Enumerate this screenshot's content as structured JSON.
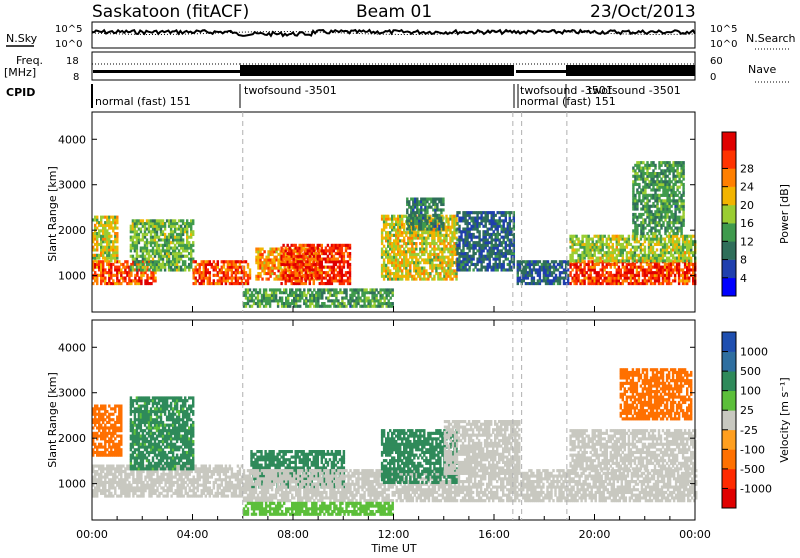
{
  "chart_data": [
    {
      "type": "table",
      "title": "Saskatoon (fitACF)",
      "beam": "Beam 01",
      "date": "23/Oct/2013",
      "panels": [
        "noise",
        "frequency",
        "cpid"
      ],
      "noise": {
        "left_label": "N.Sky",
        "right_label": "N.Search",
        "left_ticks": [
          "10^5",
          "10^0"
        ],
        "right_ticks": [
          "10^5",
          "10^0"
        ]
      },
      "frequency": {
        "left_label_1": "Freq.",
        "left_label_2": "[MHz]",
        "right_label": "Nave",
        "left_ticks": [
          "18",
          "8"
        ],
        "right_ticks": [
          "60",
          "0"
        ]
      },
      "cpid": {
        "label": "CPID",
        "modes": [
          {
            "start": 0.0,
            "end": 6.0,
            "label": "normal (fast) 151"
          },
          {
            "start": 6.0,
            "end": 16.75,
            "label": "twofsound -3501"
          },
          {
            "start": 16.75,
            "end": 17.1,
            "label": "twofsound -3501"
          },
          {
            "start": 17.1,
            "end": 18.9,
            "label": "normal (fast) 151"
          },
          {
            "start": 18.9,
            "end": 24.0,
            "label": "twofsound -3501"
          }
        ],
        "overlap_text": "twofsound -3501 normal (fast) 151"
      }
    },
    {
      "type": "heatmap",
      "quantity": "power",
      "ylabel": "Slant Range [km]",
      "ylim": [
        200,
        4600
      ],
      "yticks": [
        1000,
        2000,
        3000,
        4000
      ],
      "colorbar_label": "Power [dB]",
      "colorbar_ticks": [
        4,
        8,
        12,
        16,
        20,
        24,
        28
      ],
      "colorbar_colors": [
        "#0000ff",
        "#1f3fae",
        "#2f6e5a",
        "#3f9a4d",
        "#9acd32",
        "#f2b400",
        "#ff7f00",
        "#ff3300",
        "#e00000"
      ],
      "regions": [
        {
          "t0": 0.0,
          "t1": 2.5,
          "r0": 800,
          "r1": 1300,
          "v": 26
        },
        {
          "t0": 0.0,
          "t1": 1.0,
          "r0": 1300,
          "r1": 2300,
          "v": 18
        },
        {
          "t0": 1.5,
          "t1": 4.0,
          "r0": 1100,
          "r1": 2200,
          "v": 14
        },
        {
          "t0": 4.0,
          "t1": 6.3,
          "r0": 800,
          "r1": 1300,
          "v": 26
        },
        {
          "t0": 6.5,
          "t1": 9.0,
          "r0": 900,
          "r1": 1600,
          "v": 22
        },
        {
          "t0": 7.5,
          "t1": 10.3,
          "r0": 800,
          "r1": 1700,
          "v": 28
        },
        {
          "t0": 11.5,
          "t1": 14.5,
          "r0": 900,
          "r1": 2300,
          "v": 18
        },
        {
          "t0": 12.5,
          "t1": 14.0,
          "r0": 2000,
          "r1": 2700,
          "v": 10
        },
        {
          "t0": 14.5,
          "t1": 16.8,
          "r0": 1100,
          "r1": 2400,
          "v": 8
        },
        {
          "t0": 16.9,
          "t1": 18.9,
          "r0": 800,
          "r1": 1300,
          "v": 8
        },
        {
          "t0": 19.0,
          "t1": 24.0,
          "r0": 800,
          "r1": 1300,
          "v": 27
        },
        {
          "t0": 19.0,
          "t1": 24.0,
          "r0": 1300,
          "r1": 1900,
          "v": 16
        },
        {
          "t0": 21.5,
          "t1": 23.5,
          "r0": 1900,
          "r1": 3500,
          "v": 12
        },
        {
          "t0": 6.0,
          "t1": 12.0,
          "r0": 300,
          "r1": 700,
          "v": 12
        }
      ]
    },
    {
      "type": "heatmap",
      "quantity": "velocity",
      "ylabel": "Slant Range [km]",
      "xlabel": "Time UT",
      "ylim": [
        200,
        4600
      ],
      "yticks": [
        1000,
        2000,
        3000,
        4000
      ],
      "xticks": [
        "00:00",
        "04:00",
        "08:00",
        "12:00",
        "16:00",
        "20:00",
        "00:00"
      ],
      "colorbar_label": "Velocity [m s⁻¹]",
      "colorbar_ticks": [
        "1000",
        "500",
        "100",
        "25",
        "-25",
        "-100",
        "-500",
        "-1000"
      ],
      "colorbar_colors": [
        "#1f4fb0",
        "#2f6fa0",
        "#2f8a5a",
        "#5cbf3a",
        "#c8c8c0",
        "#ff9f1f",
        "#ff7000",
        "#ff2a00",
        "#e00000"
      ],
      "regions": [
        {
          "t0": 0.0,
          "t1": 6.0,
          "r0": 700,
          "r1": 1400,
          "v": 0
        },
        {
          "t0": 0.0,
          "t1": 1.2,
          "r0": 1600,
          "r1": 2700,
          "v": -200
        },
        {
          "t0": 1.5,
          "t1": 4.0,
          "r0": 1300,
          "r1": 2900,
          "v": 120
        },
        {
          "t0": 6.3,
          "t1": 10.0,
          "r0": 900,
          "r1": 1700,
          "v": 200
        },
        {
          "t0": 6.0,
          "t1": 24.0,
          "r0": 600,
          "r1": 1300,
          "v": 0
        },
        {
          "t0": 11.5,
          "t1": 14.5,
          "r0": 1000,
          "r1": 2200,
          "v": 300
        },
        {
          "t0": 14.0,
          "t1": 17.0,
          "r0": 1200,
          "r1": 2400,
          "v": 0
        },
        {
          "t0": 19.0,
          "t1": 24.0,
          "r0": 1300,
          "r1": 2200,
          "v": 0
        },
        {
          "t0": 21.0,
          "t1": 23.8,
          "r0": 2400,
          "r1": 3500,
          "v": -300
        },
        {
          "t0": 6.0,
          "t1": 12.0,
          "r0": 300,
          "r1": 600,
          "v": 60
        }
      ]
    }
  ]
}
